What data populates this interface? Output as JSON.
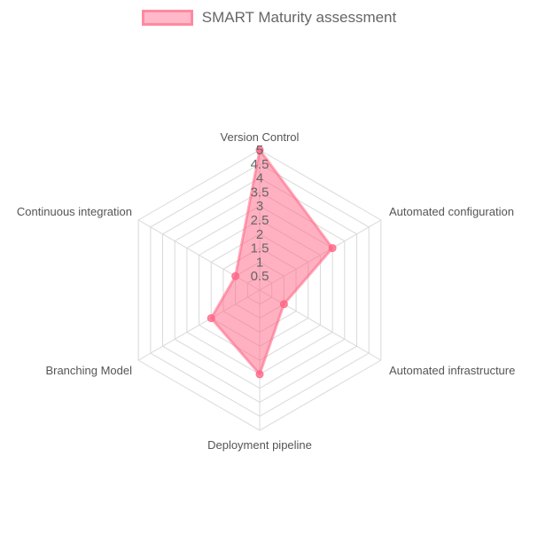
{
  "chart_data": {
    "type": "radar",
    "categories": [
      "Version Control",
      "Automated configuration",
      "Automated infrastructure",
      "Deployment pipeline",
      "Branching Model",
      "Continuous integration"
    ],
    "series": [
      {
        "name": "SMART Maturity assessment",
        "values": [
          5,
          3,
          1,
          3,
          2,
          1
        ],
        "color": "#ff6384"
      }
    ],
    "r_range": [
      0,
      5
    ],
    "ticks": [
      "0.5",
      "1",
      "1.5",
      "2",
      "2.5",
      "3",
      "3.5",
      "4",
      "4.5",
      "5"
    ],
    "grid": true,
    "legend_position": "top"
  }
}
